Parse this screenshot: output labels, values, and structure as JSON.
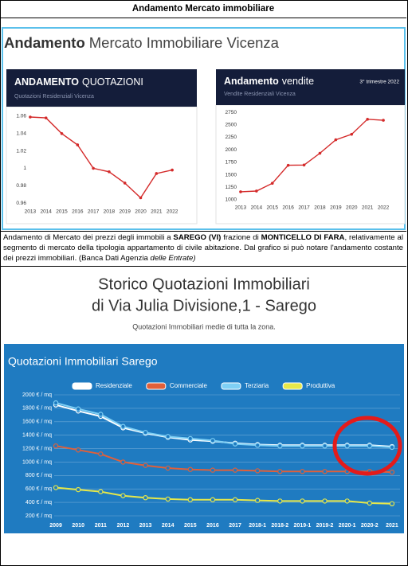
{
  "header": {
    "title": "Andamento Mercato immobiliare"
  },
  "figure1": {
    "title_strong": "Andamento",
    "title": "Mercato Immobiliare Vicenza"
  },
  "chart_data": [
    {
      "type": "line",
      "title_strong": "ANDAMENTO",
      "title": "QUOTAZIONI",
      "subtitle": "Quotazioni Residenziali Vicenza",
      "categories": [
        "2013",
        "2014",
        "2015",
        "2016",
        "2017",
        "2018",
        "2019",
        "2020",
        "2021",
        "2022"
      ],
      "values": [
        1.059,
        1.058,
        1.04,
        1.027,
        1.0,
        0.996,
        0.983,
        0.966,
        0.994,
        0.998
      ],
      "color": "#d42a2a",
      "ylim": [
        0.955,
        1.065
      ],
      "yticks": [
        0.96,
        0.98,
        1,
        1.02,
        1.04,
        1.06
      ],
      "grid": false
    },
    {
      "type": "line",
      "title_strong": "Andamento",
      "title": "vendite",
      "note": "3° trimestre 2022",
      "subtitle": "Vendite Residenziali Vicenza",
      "categories": [
        "2013",
        "2014",
        "2015",
        "2016",
        "2017",
        "2018",
        "2019",
        "2020",
        "2021",
        "2022"
      ],
      "values": [
        1160,
        1175,
        1330,
        1690,
        1695,
        1930,
        2200,
        2310,
        2610,
        2590
      ],
      "color": "#d42a2a",
      "ylim": [
        950,
        2800
      ],
      "yticks": [
        1000,
        1250,
        1500,
        1750,
        2000,
        2250,
        2500,
        2750
      ],
      "grid": false
    },
    {
      "type": "line",
      "title": "Quotazioni Immobiliari Sarego",
      "legend": "top",
      "grid": true,
      "categories": [
        "2009",
        "2010",
        "2011",
        "2012",
        "2013",
        "2014",
        "2015",
        "2016",
        "2017",
        "2018-1",
        "2018-2",
        "2019-1",
        "2019-2",
        "2020-1",
        "2020-2",
        "2021"
      ],
      "series": [
        {
          "name": "Residenziale",
          "color": "#ffffff",
          "values": [
            1850,
            1760,
            1680,
            1510,
            1430,
            1370,
            1330,
            1310,
            1280,
            1260,
            1250,
            1250,
            1250,
            1250,
            1250,
            1230
          ]
        },
        {
          "name": "Commerciale",
          "color": "#e0603a",
          "values": [
            1240,
            1180,
            1120,
            1000,
            950,
            910,
            890,
            880,
            880,
            870,
            860,
            860,
            860,
            860,
            860,
            850
          ]
        },
        {
          "name": "Terziaria",
          "color": "#7fd0f5",
          "values": [
            1880,
            1790,
            1710,
            1530,
            1440,
            1380,
            1350,
            1320,
            1270,
            1250,
            1240,
            1240,
            1240,
            1240,
            1240,
            1220
          ]
        },
        {
          "name": "Produttiva",
          "color": "#e6e84a",
          "values": [
            620,
            590,
            560,
            500,
            470,
            450,
            440,
            440,
            440,
            430,
            420,
            420,
            420,
            420,
            390,
            380
          ]
        }
      ],
      "ylim": [
        200,
        2000
      ],
      "yticks": [
        {
          "value": 200,
          "label": "200 € / mq"
        },
        {
          "value": 400,
          "label": "400 € / mq"
        },
        {
          "value": 600,
          "label": "600 € / mq"
        },
        {
          "value": 800,
          "label": "800 € / mq"
        },
        {
          "value": 1000,
          "label": "1000 € / mq"
        },
        {
          "value": 1200,
          "label": "1200 € / mq"
        },
        {
          "value": 1400,
          "label": "1400 € / mq"
        },
        {
          "value": 1600,
          "label": "1600 € / mq"
        },
        {
          "value": 1800,
          "label": "1800 € / mq"
        },
        {
          "value": 2000,
          "label": "2000 € / mq"
        }
      ]
    }
  ],
  "paragraph": [
    "Andamento di Mercato dei prezzi degli immobili a ",
    "SAREGO (VI)",
    " frazione di ",
    "MONTICELLO DI FARA",
    ", relativamente al segmento di mercato della tipologia appartamento di civile abitazione. Dal grafico si può notare l'andamento costante dei prezzi immobiliari. (Banca Dati Agenzia ",
    "delle Entrate)"
  ],
  "figure2": {
    "title_lines": [
      "Storico Quotazioni Immobiliari",
      "di Via Julia Divisione,1 - Sarego"
    ],
    "subtitle": "Quotazioni Immobiliari medie di tutta la zona."
  }
}
